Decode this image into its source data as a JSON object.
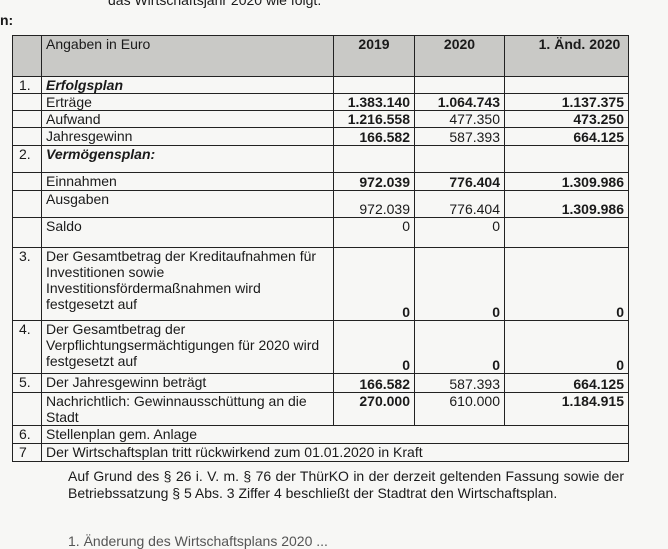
{
  "intro_text": "das Wirtschaftsjahr 2020 wie folgt.",
  "left_fragment": "n:",
  "table": {
    "header": {
      "label": "Angaben in Euro",
      "col_2019": "2019",
      "col_2020": "2020",
      "col_aend": "1.   Änd. 2020"
    },
    "rows": [
      {
        "nr": "1.",
        "label": "Erfolgsplan",
        "v2019": "",
        "v2020": "",
        "vaend": ""
      },
      {
        "nr": "",
        "label": "Erträge",
        "v2019": "1.383.140",
        "v2020": "1.064.743",
        "vaend": "1.137.375"
      },
      {
        "nr": "",
        "label": "Aufwand",
        "v2019": "1.216.558",
        "v2020": "477.350",
        "vaend": "473.250"
      },
      {
        "nr": "",
        "label": "Jahresgewinn",
        "v2019": "166.582",
        "v2020": "587.393",
        "vaend": "664.125"
      },
      {
        "nr": "2.",
        "label": "Vermögensplan:",
        "v2019": "",
        "v2020": "",
        "vaend": ""
      },
      {
        "nr": "",
        "label": "Einnahmen",
        "v2019": "972.039",
        "v2020": "776.404",
        "vaend": "1.309.986"
      },
      {
        "nr": "",
        "label": "Ausgaben",
        "v2019": "972.039",
        "v2020": "776.404",
        "vaend": "1.309.986"
      },
      {
        "nr": "",
        "label": "Saldo",
        "v2019": "0",
        "v2020": "0",
        "vaend": ""
      },
      {
        "nr": "3.",
        "label": "Der Gesamtbetrag der Kreditaufnahmen für Investitionen sowie Investitionsfördermaßnahmen wird festgesetzt auf",
        "v2019": "0",
        "v2020": "0",
        "vaend": "0"
      },
      {
        "nr": "4.",
        "label": "Der Gesamtbetrag der Verpflichtungsermächtigungen für 2020 wird festgesetzt auf",
        "v2019": "0",
        "v2020": "0",
        "vaend": "0"
      },
      {
        "nr": "5.",
        "label": "Der Jahresgewinn beträgt",
        "v2019": "166.582",
        "v2020": "587.393",
        "vaend": "664.125"
      },
      {
        "nr": "",
        "label": "Nachrichtlich: Gewinnausschüttung an die Stadt",
        "v2019": "270.000",
        "v2020": "610.000",
        "vaend": "1.184.915"
      },
      {
        "nr": "6.",
        "label": "Stellenplan gem. Anlage"
      },
      {
        "nr": "7",
        "label": "Der Wirtschaftsplan tritt rückwirkend zum 01.01.2020 in Kraft"
      }
    ]
  },
  "paragraph": "Auf Grund des § 26 i. V. m. § 76 der ThürKO in der derzeit geltenden Fassung sowie der Betriebssatzung § 5 Abs. 3 Ziffer 4 beschließt der Stadtrat den Wirtschaftsplan.",
  "bottom_fragment": "1. Änderung des Wirtschaftsplans 2020 ..."
}
